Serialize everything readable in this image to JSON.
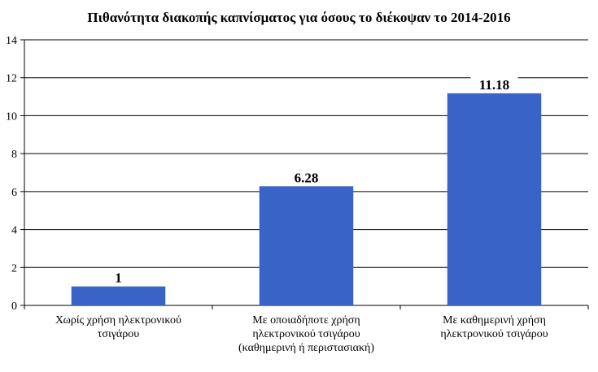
{
  "chart_data": {
    "type": "bar",
    "title": "Πιθανότητα διακοπής καπνίσματος για όσους το διέκοψαν το 2014-2016",
    "xlabel": "",
    "ylabel": "",
    "categories": [
      [
        "Χωρίς χρήση ηλεκτρονικού",
        "τσιγάρου"
      ],
      [
        "Με οποιαδήποτε χρήση",
        "ηλεκτρονικού τσιγάρου",
        "(καθημερινή ή περιστασιακή)"
      ],
      [
        "Με καθημερινή χρήση",
        "ηλεκτρονικού τσιγάρου"
      ]
    ],
    "values": [
      1,
      6.28,
      11.18
    ],
    "data_labels": [
      "1",
      "6.28",
      "11.18"
    ],
    "ylim": [
      0,
      14
    ],
    "yticks": [
      0,
      2,
      4,
      6,
      8,
      10,
      12,
      14
    ],
    "grid": true,
    "legend": "none",
    "colors": {
      "bar": "#3a63c8",
      "grid": "#000000",
      "label_bg": "#ffffff"
    }
  }
}
